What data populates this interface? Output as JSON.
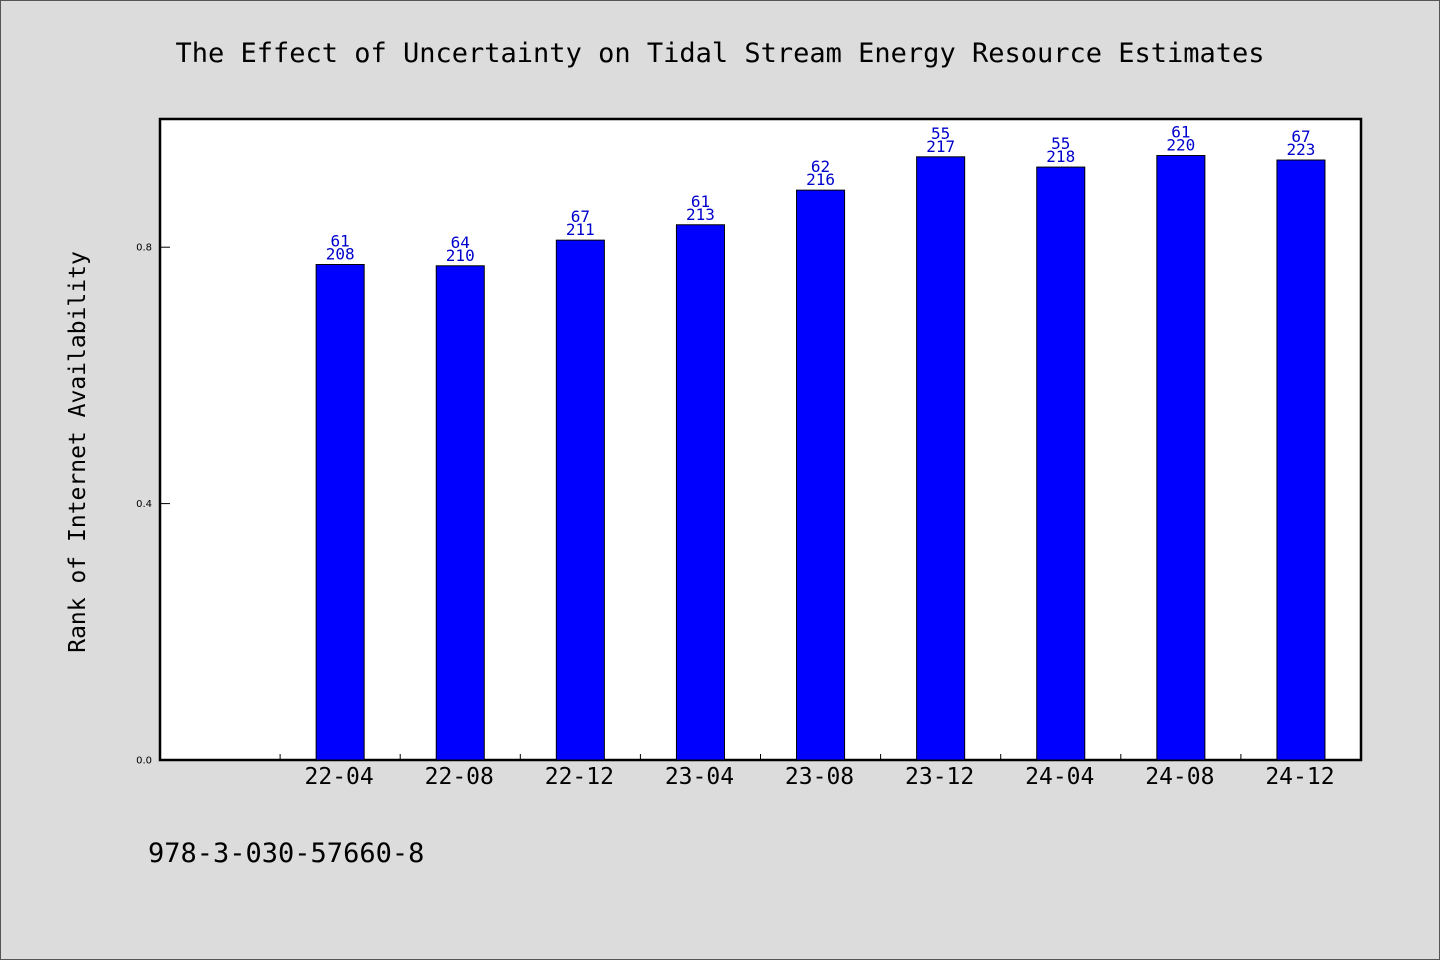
{
  "chart_data": {
    "type": "bar",
    "title": "The Effect of Uncertainty on Tidal Stream Energy Resource Estimates",
    "xlabel": "",
    "ylabel": "Rank of Internet Availability",
    "ylim": [
      0,
      1.0
    ],
    "yticks": [
      {
        "value": 0.0,
        "label": "0.0"
      },
      {
        "value": 0.4,
        "label": "0.4"
      },
      {
        "value": 0.8,
        "label": "0.8"
      }
    ],
    "x_range": [
      0,
      10
    ],
    "categories": [
      "22-04",
      "22-08",
      "22-12",
      "23-04",
      "23-08",
      "23-12",
      "24-04",
      "24-08",
      "24-12"
    ],
    "positions": [
      1.5,
      2.5,
      3.5,
      4.5,
      5.5,
      6.5,
      7.5,
      8.5,
      9.5
    ],
    "series": [
      {
        "values": [
          0.773,
          0.771,
          0.811,
          0.835,
          0.889,
          0.941,
          0.925,
          0.943,
          0.936
        ],
        "color": "#0000ff",
        "labels_top": [
          "61",
          "64",
          "67",
          "61",
          "62",
          "55",
          "55",
          "61",
          "67"
        ],
        "labels_bottom": [
          "208",
          "210",
          "211",
          "213",
          "216",
          "217",
          "218",
          "220",
          "223"
        ]
      }
    ],
    "grid": false,
    "legend": "none"
  },
  "footer": {
    "isbn": "978-3-030-57660-8"
  },
  "colors": {
    "background": "#dcdcdc",
    "plot_background": "#ffffff",
    "bar": "#0000ff",
    "bar_label": "#0000cc"
  }
}
